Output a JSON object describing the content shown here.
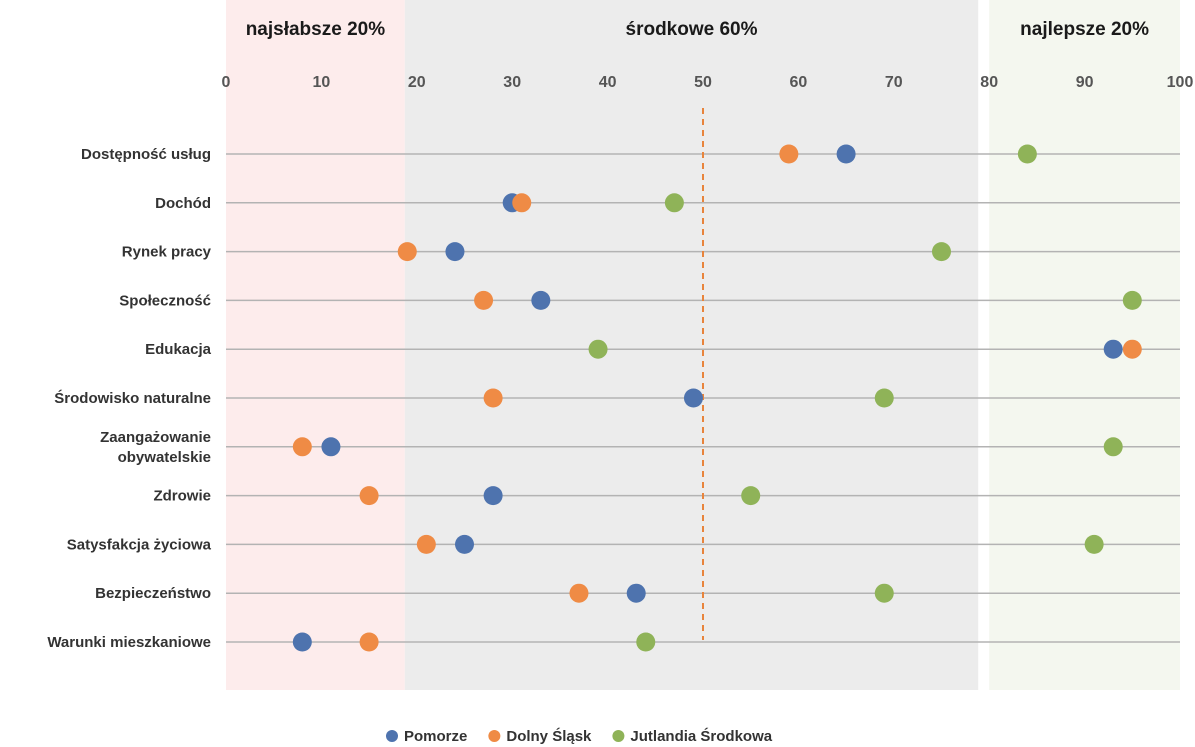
{
  "chart_data": {
    "type": "scatter",
    "xlim": [
      0,
      100
    ],
    "xticks": [
      "0",
      "10",
      "20",
      "30",
      "40",
      "50",
      "60",
      "70",
      "80",
      "90",
      "100"
    ],
    "reference_line": 50,
    "bands": [
      {
        "label": "najsłabsze 20%",
        "from": 0,
        "to": 20,
        "color": "#fdecec"
      },
      {
        "label": "środkowe 60%",
        "from": 20,
        "to": 80,
        "color": "#ececec"
      },
      {
        "label": "najlepsze 20%",
        "from": 80,
        "to": 100,
        "color": "#f4f7ef"
      }
    ],
    "categories": [
      [
        "Dostępność usług"
      ],
      [
        "Dochód"
      ],
      [
        "Rynek pracy"
      ],
      [
        "Społeczność"
      ],
      [
        "Edukacja"
      ],
      [
        "Środowisko naturalne"
      ],
      [
        "Zaangażowanie",
        "obywatelskie"
      ],
      [
        "Zdrowie"
      ],
      [
        "Satysfakcja życiowa"
      ],
      [
        "Bezpieczeństwo"
      ],
      [
        "Warunki mieszkaniowe"
      ]
    ],
    "series": [
      {
        "name": "Pomorze",
        "color": "#4e73ae",
        "values": [
          65,
          30,
          24,
          33,
          93,
          49,
          11,
          28,
          25,
          43,
          8
        ]
      },
      {
        "name": "Dolny Śląsk",
        "color": "#ef8b45",
        "values": [
          59,
          31,
          19,
          27,
          95,
          28,
          8,
          15,
          21,
          37,
          15
        ]
      },
      {
        "name": "Jutlandia Środkowa",
        "color": "#8fb358",
        "values": [
          84,
          47,
          75,
          95,
          39,
          69,
          93,
          55,
          91,
          69,
          44
        ]
      }
    ],
    "grid": true,
    "legend_position": "bottom"
  }
}
